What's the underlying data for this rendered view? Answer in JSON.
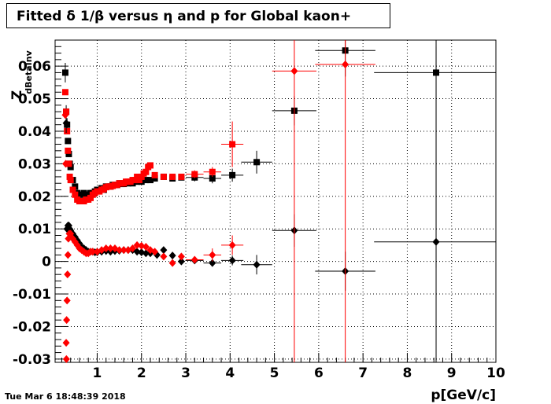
{
  "chart_data": {
    "type": "scatter",
    "title": "Fitted δ 1/β versus η and p for Global kaon+",
    "xlabel": "p[GeV/c]",
    "ylabel": "Z",
    "ylabel_sub": "dBetaInv",
    "xlim": [
      0.05,
      10
    ],
    "ylim": [
      -0.031,
      0.068
    ],
    "x_ticks": [
      1,
      2,
      3,
      4,
      5,
      6,
      7,
      8,
      9,
      10
    ],
    "y_ticks": [
      -0.03,
      -0.02,
      -0.01,
      0,
      0.01,
      0.02,
      0.03,
      0.04,
      0.05,
      0.06
    ],
    "y_tick_labels": [
      "-0.03",
      "-0.02",
      "-0.01",
      "0",
      "0.01",
      "0.02",
      "0.03",
      "0.04",
      "0.05",
      "0.06"
    ],
    "grid": true,
    "series": [
      {
        "marker": "square",
        "color": "#000000",
        "points": [
          {
            "x": 0.28,
            "y": 0.058,
            "ey": 0.003
          },
          {
            "x": 0.3,
            "y": 0.046,
            "ey": 0.002
          },
          {
            "x": 0.32,
            "y": 0.042,
            "ey": 0.002
          },
          {
            "x": 0.34,
            "y": 0.037
          },
          {
            "x": 0.36,
            "y": 0.033
          },
          {
            "x": 0.38,
            "y": 0.03
          },
          {
            "x": 0.4,
            "y": 0.029
          },
          {
            "x": 0.45,
            "y": 0.025
          },
          {
            "x": 0.5,
            "y": 0.023
          },
          {
            "x": 0.55,
            "y": 0.021
          },
          {
            "x": 0.6,
            "y": 0.0205
          },
          {
            "x": 0.65,
            "y": 0.0205
          },
          {
            "x": 0.7,
            "y": 0.021
          },
          {
            "x": 0.75,
            "y": 0.0205
          },
          {
            "x": 0.8,
            "y": 0.0205
          },
          {
            "x": 0.85,
            "y": 0.021
          },
          {
            "x": 0.9,
            "y": 0.021
          },
          {
            "x": 0.95,
            "y": 0.0215
          },
          {
            "x": 1.0,
            "y": 0.022
          },
          {
            "x": 1.05,
            "y": 0.022
          },
          {
            "x": 1.1,
            "y": 0.0225
          },
          {
            "x": 1.15,
            "y": 0.022
          },
          {
            "x": 1.2,
            "y": 0.023
          },
          {
            "x": 1.25,
            "y": 0.023
          },
          {
            "x": 1.3,
            "y": 0.023
          },
          {
            "x": 1.35,
            "y": 0.0235
          },
          {
            "x": 1.4,
            "y": 0.0235
          },
          {
            "x": 1.45,
            "y": 0.0235
          },
          {
            "x": 1.5,
            "y": 0.024
          },
          {
            "x": 1.55,
            "y": 0.0238
          },
          {
            "x": 1.6,
            "y": 0.0238
          },
          {
            "x": 1.65,
            "y": 0.0242
          },
          {
            "x": 1.7,
            "y": 0.024
          },
          {
            "x": 1.75,
            "y": 0.0245
          },
          {
            "x": 1.8,
            "y": 0.024
          },
          {
            "x": 1.9,
            "y": 0.0245
          },
          {
            "x": 2.0,
            "y": 0.0245
          },
          {
            "x": 2.1,
            "y": 0.025
          },
          {
            "x": 2.2,
            "y": 0.025
          },
          {
            "x": 2.3,
            "y": 0.0255
          },
          {
            "x": 2.5,
            "y": 0.026
          },
          {
            "x": 2.7,
            "y": 0.0255
          },
          {
            "x": 2.9,
            "y": 0.0258
          },
          {
            "x": 3.2,
            "y": 0.0258,
            "ey": 0.0012
          },
          {
            "x": 3.6,
            "y": 0.0255,
            "ey": 0.0015
          },
          {
            "x": 4.05,
            "y": 0.0265,
            "ey": 0.002
          },
          {
            "x": 4.6,
            "y": 0.0305,
            "ey": 0.0035
          },
          {
            "x": 5.45,
            "y": 0.0463,
            "ey": 0.0045
          },
          {
            "x": 6.6,
            "y": 0.0648,
            "ey": 0.008
          },
          {
            "x": 8.65,
            "y": 0.058,
            "ey": 0.06
          }
        ]
      },
      {
        "marker": "square",
        "color": "#ff0000",
        "points": [
          {
            "x": 0.28,
            "y": 0.052
          },
          {
            "x": 0.3,
            "y": 0.046
          },
          {
            "x": 0.32,
            "y": 0.04
          },
          {
            "x": 0.34,
            "y": 0.034
          },
          {
            "x": 0.36,
            "y": 0.03
          },
          {
            "x": 0.38,
            "y": 0.026
          },
          {
            "x": 0.4,
            "y": 0.025
          },
          {
            "x": 0.45,
            "y": 0.022
          },
          {
            "x": 0.5,
            "y": 0.0205
          },
          {
            "x": 0.55,
            "y": 0.019
          },
          {
            "x": 0.6,
            "y": 0.0185
          },
          {
            "x": 0.65,
            "y": 0.0185
          },
          {
            "x": 0.7,
            "y": 0.0185
          },
          {
            "x": 0.75,
            "y": 0.019
          },
          {
            "x": 0.8,
            "y": 0.019
          },
          {
            "x": 0.85,
            "y": 0.0195
          },
          {
            "x": 0.9,
            "y": 0.0205
          },
          {
            "x": 0.95,
            "y": 0.021
          },
          {
            "x": 1.0,
            "y": 0.0215
          },
          {
            "x": 1.05,
            "y": 0.0215
          },
          {
            "x": 1.1,
            "y": 0.022
          },
          {
            "x": 1.15,
            "y": 0.0222
          },
          {
            "x": 1.2,
            "y": 0.0228
          },
          {
            "x": 1.25,
            "y": 0.023
          },
          {
            "x": 1.3,
            "y": 0.023
          },
          {
            "x": 1.35,
            "y": 0.0232
          },
          {
            "x": 1.4,
            "y": 0.0235
          },
          {
            "x": 1.45,
            "y": 0.0235
          },
          {
            "x": 1.5,
            "y": 0.024
          },
          {
            "x": 1.55,
            "y": 0.024
          },
          {
            "x": 1.6,
            "y": 0.024
          },
          {
            "x": 1.65,
            "y": 0.0245
          },
          {
            "x": 1.7,
            "y": 0.0245
          },
          {
            "x": 1.75,
            "y": 0.0245
          },
          {
            "x": 1.8,
            "y": 0.025
          },
          {
            "x": 1.85,
            "y": 0.025
          },
          {
            "x": 1.9,
            "y": 0.026
          },
          {
            "x": 1.95,
            "y": 0.025
          },
          {
            "x": 2.0,
            "y": 0.026
          },
          {
            "x": 2.05,
            "y": 0.027
          },
          {
            "x": 2.1,
            "y": 0.0275
          },
          {
            "x": 2.15,
            "y": 0.029
          },
          {
            "x": 2.2,
            "y": 0.0295
          },
          {
            "x": 2.3,
            "y": 0.0265
          },
          {
            "x": 2.5,
            "y": 0.026
          },
          {
            "x": 2.7,
            "y": 0.026
          },
          {
            "x": 2.9,
            "y": 0.026
          },
          {
            "x": 3.2,
            "y": 0.0268,
            "ey": 0.0012
          },
          {
            "x": 3.6,
            "y": 0.0275,
            "ey": 0.0015
          },
          {
            "x": 4.05,
            "y": 0.036,
            "ey": 0.007
          }
        ]
      },
      {
        "marker": "diamond",
        "color": "#000000",
        "points": [
          {
            "x": 0.3,
            "y": 0.0425,
            "ey": 0.003
          },
          {
            "x": 0.32,
            "y": 0.01
          },
          {
            "x": 0.34,
            "y": 0.011
          },
          {
            "x": 0.36,
            "y": 0.011
          },
          {
            "x": 0.38,
            "y": 0.01
          },
          {
            "x": 0.4,
            "y": 0.0095
          },
          {
            "x": 0.45,
            "y": 0.0085
          },
          {
            "x": 0.5,
            "y": 0.0075
          },
          {
            "x": 0.55,
            "y": 0.0065
          },
          {
            "x": 0.6,
            "y": 0.0055
          },
          {
            "x": 0.65,
            "y": 0.0045
          },
          {
            "x": 0.7,
            "y": 0.004
          },
          {
            "x": 0.75,
            "y": 0.0035
          },
          {
            "x": 0.8,
            "y": 0.003
          },
          {
            "x": 0.85,
            "y": 0.003
          },
          {
            "x": 0.9,
            "y": 0.003
          },
          {
            "x": 0.95,
            "y": 0.0028
          },
          {
            "x": 1.0,
            "y": 0.0028
          },
          {
            "x": 1.1,
            "y": 0.003
          },
          {
            "x": 1.2,
            "y": 0.0032
          },
          {
            "x": 1.3,
            "y": 0.003
          },
          {
            "x": 1.4,
            "y": 0.0032
          },
          {
            "x": 1.5,
            "y": 0.0033
          },
          {
            "x": 1.6,
            "y": 0.0035
          },
          {
            "x": 1.7,
            "y": 0.0035
          },
          {
            "x": 1.8,
            "y": 0.0035
          },
          {
            "x": 1.9,
            "y": 0.003
          },
          {
            "x": 2.0,
            "y": 0.0028
          },
          {
            "x": 2.1,
            "y": 0.0025
          },
          {
            "x": 2.2,
            "y": 0.0025
          },
          {
            "x": 2.35,
            "y": 0.002
          },
          {
            "x": 2.5,
            "y": 0.0035
          },
          {
            "x": 2.7,
            "y": 0.0018
          },
          {
            "x": 2.9,
            "y": 0.0
          },
          {
            "x": 3.2,
            "y": 0.0003
          },
          {
            "x": 3.6,
            "y": -0.0005
          },
          {
            "x": 4.05,
            "y": 0.0003,
            "ey": 0.0015
          },
          {
            "x": 4.6,
            "y": -0.001,
            "ey": 0.003
          },
          {
            "x": 5.45,
            "y": 0.0095,
            "ey": 0.005
          },
          {
            "x": 6.6,
            "y": -0.003,
            "ey": 0.006
          },
          {
            "x": 8.65,
            "y": 0.006,
            "ey": 0.06
          }
        ]
      },
      {
        "marker": "diamond",
        "color": "#ff0000",
        "points": [
          {
            "x": 0.28,
            "y": 0.045
          },
          {
            "x": 0.29,
            "y": 0.03
          },
          {
            "x": 0.3,
            "y": -0.025
          },
          {
            "x": 0.305,
            "y": -0.03
          },
          {
            "x": 0.31,
            "y": -0.018
          },
          {
            "x": 0.32,
            "y": -0.012
          },
          {
            "x": 0.33,
            "y": -0.004
          },
          {
            "x": 0.34,
            "y": 0.002
          },
          {
            "x": 0.35,
            "y": 0.007
          },
          {
            "x": 0.37,
            "y": 0.0085
          },
          {
            "x": 0.4,
            "y": 0.0085
          },
          {
            "x": 0.45,
            "y": 0.007
          },
          {
            "x": 0.5,
            "y": 0.006
          },
          {
            "x": 0.55,
            "y": 0.005
          },
          {
            "x": 0.6,
            "y": 0.004
          },
          {
            "x": 0.65,
            "y": 0.0035
          },
          {
            "x": 0.7,
            "y": 0.003
          },
          {
            "x": 0.75,
            "y": 0.0025
          },
          {
            "x": 0.8,
            "y": 0.0025
          },
          {
            "x": 0.85,
            "y": 0.003
          },
          {
            "x": 0.9,
            "y": 0.003
          },
          {
            "x": 1.0,
            "y": 0.003
          },
          {
            "x": 1.1,
            "y": 0.0035
          },
          {
            "x": 1.2,
            "y": 0.004
          },
          {
            "x": 1.3,
            "y": 0.004
          },
          {
            "x": 1.4,
            "y": 0.004
          },
          {
            "x": 1.5,
            "y": 0.0035
          },
          {
            "x": 1.6,
            "y": 0.0035
          },
          {
            "x": 1.7,
            "y": 0.0035
          },
          {
            "x": 1.8,
            "y": 0.004
          },
          {
            "x": 1.9,
            "y": 0.005
          },
          {
            "x": 2.0,
            "y": 0.0048
          },
          {
            "x": 2.1,
            "y": 0.0045
          },
          {
            "x": 2.2,
            "y": 0.0035
          },
          {
            "x": 2.3,
            "y": 0.003
          },
          {
            "x": 2.5,
            "y": 0.0015
          },
          {
            "x": 2.7,
            "y": -0.0005
          },
          {
            "x": 2.9,
            "y": 0.0015
          },
          {
            "x": 3.2,
            "y": 0.0005
          },
          {
            "x": 3.6,
            "y": 0.002,
            "ey": 0.002
          },
          {
            "x": 4.05,
            "y": 0.005,
            "ey": 0.003
          },
          {
            "x": 5.45,
            "y": 0.0585,
            "ey": 0.1
          },
          {
            "x": 6.6,
            "y": 0.0605,
            "ey": 0.1
          }
        ]
      }
    ]
  },
  "footer": {
    "timestamp": "Tue Mar  6 18:48:39 2018"
  }
}
